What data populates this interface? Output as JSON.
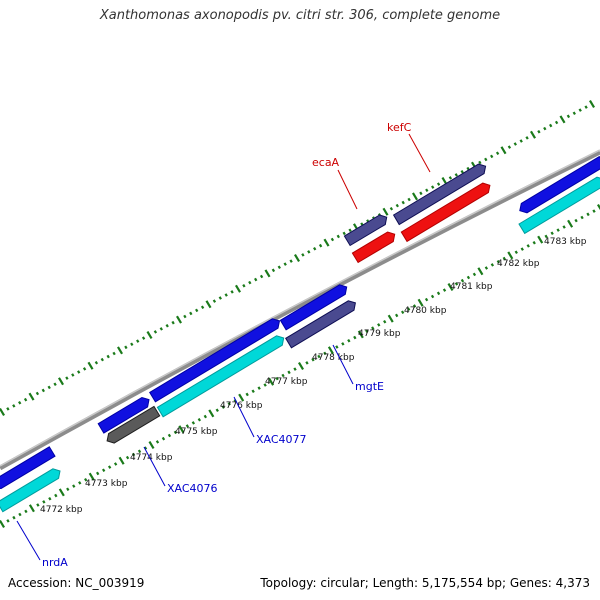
{
  "title": "Xanthomonas axonopodis pv. citri str. 306, complete genome",
  "footer": {
    "accession": "Accession: NC_003919",
    "summary": "Topology: circular; Length: 5,175,554 bp; Genes: 4,373"
  },
  "colors": {
    "backbone": "#8c8c8c",
    "ticks": "#1a7a1a",
    "gene_blue": "#1010e0",
    "gene_cyan": "#00d8d8",
    "gene_slate": "#4a4a90",
    "gene_red": "#ee1111",
    "gene_gray": "#5a5a5a",
    "label_blue": "#0000cc",
    "label_red": "#cc0000"
  },
  "scale_labels": [
    {
      "text": "4772 kbp",
      "pos": 4772
    },
    {
      "text": "4773 kbp",
      "pos": 4773
    },
    {
      "text": "4774 kbp",
      "pos": 4774
    },
    {
      "text": "4775 kbp",
      "pos": 4775
    },
    {
      "text": "4776 kbp",
      "pos": 4776
    },
    {
      "text": "4777 kbp",
      "pos": 4777
    },
    {
      "text": "4778 kbp",
      "pos": 4778
    },
    {
      "text": "4779 kbp",
      "pos": 4779
    },
    {
      "text": "4780 kbp",
      "pos": 4780
    },
    {
      "text": "4781 kbp",
      "pos": 4781
    },
    {
      "text": "4782 kbp",
      "pos": 4782
    },
    {
      "text": "4783 kbp",
      "pos": 4783
    }
  ],
  "genes": [
    {
      "name": "nrdA",
      "label_color": "label_blue"
    },
    {
      "name": "XAC4076",
      "label_color": "label_blue"
    },
    {
      "name": "XAC4077",
      "label_color": "label_blue"
    },
    {
      "name": "mgtE",
      "label_color": "label_blue"
    },
    {
      "name": "ecaA",
      "label_color": "label_red"
    },
    {
      "name": "kefC",
      "label_color": "label_red"
    }
  ]
}
